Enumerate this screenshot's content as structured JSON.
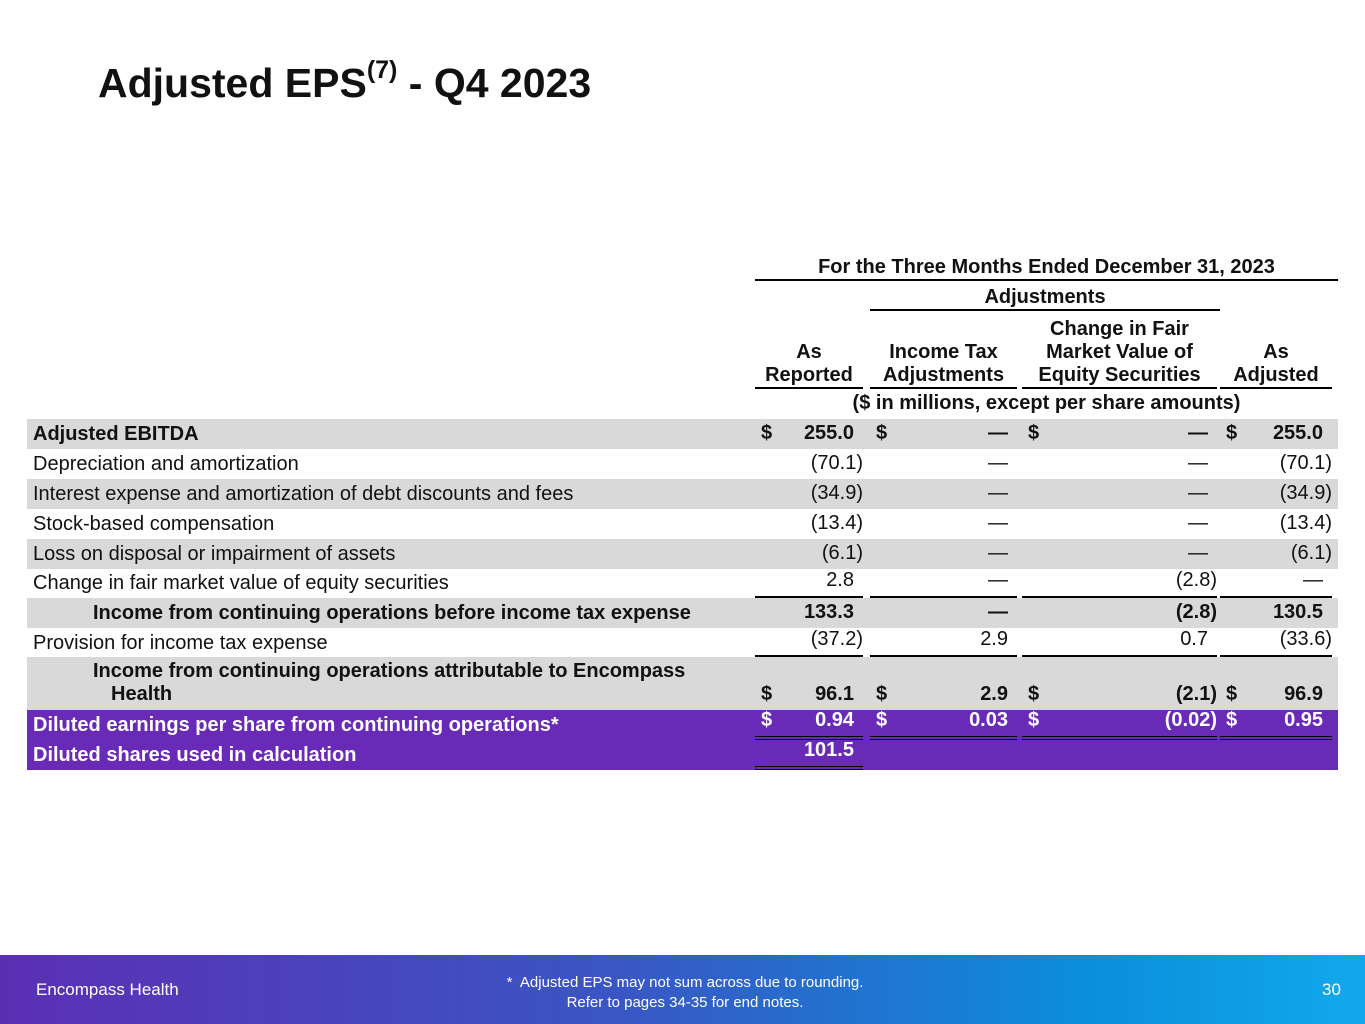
{
  "title": {
    "main": "Adjusted EPS",
    "sup": "(7)",
    "rest": " - Q4 2023"
  },
  "table": {
    "period": "For the Three Months Ended December 31, 2023",
    "group": "Adjustments",
    "columns": [
      "As Reported",
      "Income Tax Adjustments",
      "Change in Fair Market Value of Equity Securities",
      "As Adjusted"
    ],
    "units": "($ in millions, except per share amounts)",
    "rows": [
      {
        "label": "Adjusted EBITDA",
        "cells": [
          {
            "currency": "$",
            "value": "255.0"
          },
          {
            "currency": "$",
            "value": "—"
          },
          {
            "currency": "$",
            "value": "—"
          },
          {
            "currency": "$",
            "value": "255.0"
          }
        ]
      },
      {
        "label": "Depreciation and amortization",
        "cells": [
          {
            "value": "(70.1)"
          },
          {
            "value": "—"
          },
          {
            "value": "—"
          },
          {
            "value": "(70.1)"
          }
        ]
      },
      {
        "label": "Interest expense and amortization of debt discounts and fees",
        "cells": [
          {
            "value": "(34.9)"
          },
          {
            "value": "—"
          },
          {
            "value": "—"
          },
          {
            "value": "(34.9)"
          }
        ]
      },
      {
        "label": "Stock-based compensation",
        "cells": [
          {
            "value": "(13.4)"
          },
          {
            "value": "—"
          },
          {
            "value": "—"
          },
          {
            "value": "(13.4)"
          }
        ]
      },
      {
        "label": "Loss on disposal or impairment of assets",
        "cells": [
          {
            "value": "(6.1)"
          },
          {
            "value": "—"
          },
          {
            "value": "—"
          },
          {
            "value": "(6.1)"
          }
        ]
      },
      {
        "label": "Change in fair market value of equity securities",
        "cells": [
          {
            "value": "2.8"
          },
          {
            "value": "—"
          },
          {
            "value": "(2.8)"
          },
          {
            "value": "—"
          }
        ]
      },
      {
        "label": "Income from continuing operations before income tax expense",
        "cells": [
          {
            "value": "133.3"
          },
          {
            "value": "—"
          },
          {
            "value": "(2.8)"
          },
          {
            "value": "130.5"
          }
        ]
      },
      {
        "label": "Provision for income tax expense",
        "cells": [
          {
            "value": "(37.2)"
          },
          {
            "value": "2.9"
          },
          {
            "value": "0.7"
          },
          {
            "value": "(33.6)"
          }
        ]
      },
      {
        "label": "Income from continuing operations attributable to Encompass Health",
        "cells": [
          {
            "currency": "$",
            "value": "96.1"
          },
          {
            "currency": "$",
            "value": "2.9"
          },
          {
            "currency": "$",
            "value": "(2.1)"
          },
          {
            "currency": "$",
            "value": "96.9"
          }
        ]
      },
      {
        "label": "Diluted earnings per share from continuing operations*",
        "cells": [
          {
            "currency": "$",
            "value": "0.94"
          },
          {
            "currency": "$",
            "value": "0.03"
          },
          {
            "currency": "$",
            "value": "(0.02)"
          },
          {
            "currency": "$",
            "value": "0.95"
          }
        ]
      },
      {
        "label": "Diluted shares used in calculation",
        "cells": [
          {
            "value": "101.5"
          }
        ]
      }
    ]
  },
  "footer": {
    "company": "Encompass Health",
    "note": [
      "*  Adjusted EPS may not sum across due to rounding.",
      "Refer to pages 34-35 for end notes."
    ],
    "page": "30"
  }
}
